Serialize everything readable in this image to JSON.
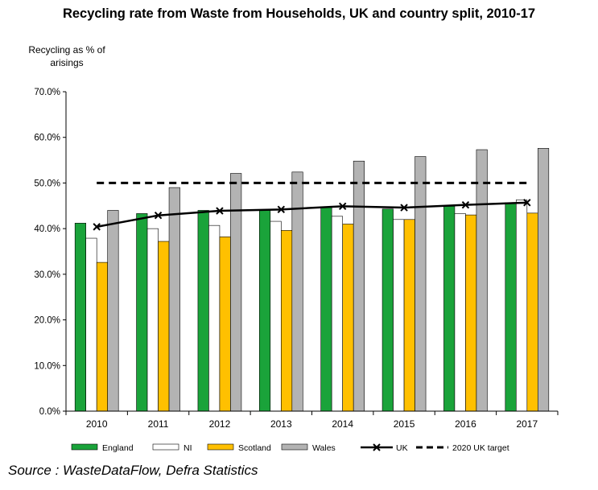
{
  "chart_data": {
    "type": "bar",
    "title": "Recycling rate from Waste from Households, UK and country split, 2010-17",
    "ylabel": "Recycling as % of arisings",
    "xlabel": "",
    "ylim": [
      0,
      70
    ],
    "ytick_step": 10,
    "ytick_labels": [
      "0.0%",
      "10.0%",
      "20.0%",
      "30.0%",
      "40.0%",
      "50.0%",
      "60.0%",
      "70.0%"
    ],
    "categories": [
      "2010",
      "2011",
      "2012",
      "2013",
      "2014",
      "2015",
      "2016",
      "2017"
    ],
    "series": [
      {
        "name": "England",
        "type": "bar",
        "color": "#1aa33a",
        "values": [
          41.2,
          43.3,
          44.0,
          44.2,
          44.8,
          44.3,
          44.9,
          45.7
        ]
      },
      {
        "name": "NI",
        "type": "bar",
        "color": "#ffffff",
        "values": [
          37.9,
          40.0,
          40.7,
          41.6,
          42.7,
          42.0,
          43.3,
          46.3
        ]
      },
      {
        "name": "Scotland",
        "type": "bar",
        "color": "#ffc000",
        "values": [
          32.6,
          37.2,
          38.2,
          39.6,
          41.0,
          42.0,
          43.0,
          43.4
        ]
      },
      {
        "name": "Wales",
        "type": "bar",
        "color": "#b3b3b3",
        "values": [
          44.0,
          49.0,
          52.1,
          52.4,
          54.8,
          55.8,
          57.3,
          57.6
        ]
      },
      {
        "name": "UK",
        "type": "line",
        "marker": "x",
        "color": "#000000",
        "values": [
          40.4,
          42.9,
          43.9,
          44.2,
          44.9,
          44.6,
          45.2,
          45.7
        ]
      },
      {
        "name": "2020 UK target",
        "type": "dashed-line",
        "color": "#000000",
        "values": [
          50,
          50,
          50,
          50,
          50,
          50,
          50,
          50
        ]
      }
    ],
    "legend_position": "bottom",
    "grid": false
  },
  "source": "Source : WasteDataFlow, Defra Statistics"
}
